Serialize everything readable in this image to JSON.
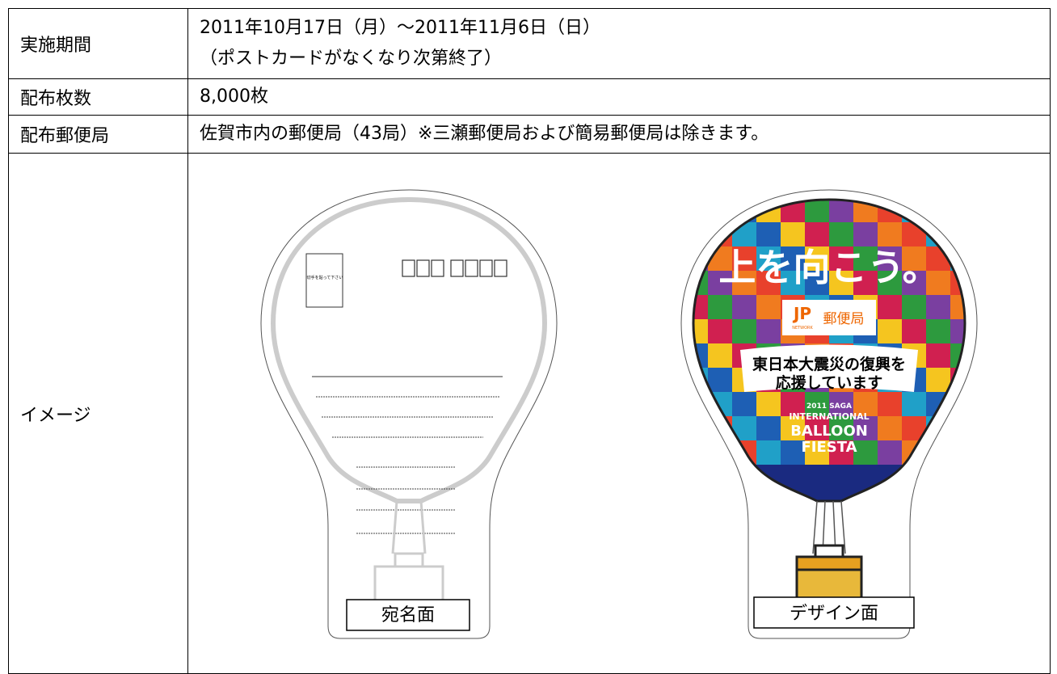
{
  "table": {
    "rows": [
      {
        "label": "実施期間",
        "lines": [
          "2011年10月17日（月）〜2011年11月6日（日）",
          "（ポストカードがなくなり次第終了）"
        ]
      },
      {
        "label": "配布枚数",
        "lines": [
          "8,000枚"
        ]
      },
      {
        "label": "配布郵便局",
        "lines": [
          "佐賀市内の郵便局（43局）※三瀬郵便局および簡易郵便局は除きます。"
        ]
      },
      {
        "label": "イメージ",
        "images": [
          {
            "caption": "宛名面",
            "stamp_note": "切手を貼って下さい"
          },
          {
            "caption": "デザイン面",
            "headline": "上を向こう。",
            "logo": "郵便局",
            "logo_sub": "NETWORK",
            "message": [
              "東日本大震災の復興を",
              "応援しています"
            ],
            "event": [
              "2011 SAGA",
              "INTERNATIONAL",
              "BALLOON",
              "FIESTA"
            ]
          }
        ]
      }
    ]
  }
}
